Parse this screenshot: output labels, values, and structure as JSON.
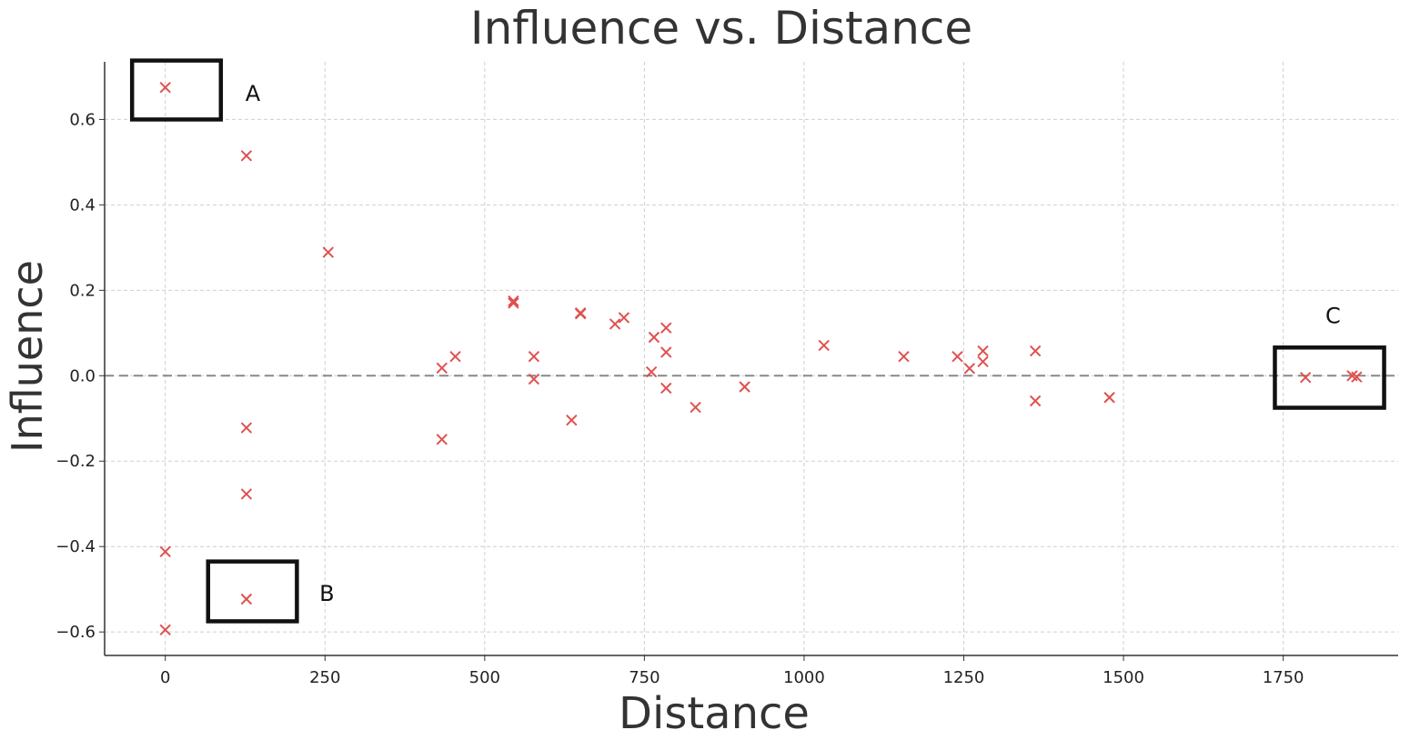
{
  "chart_data": {
    "type": "scatter",
    "title": "Influence vs. Distance",
    "xlabel": "Distance",
    "ylabel": "Influence",
    "xlim": [
      -95,
      1930
    ],
    "ylim": [
      -0.655,
      0.735
    ],
    "x_ticks": [
      0,
      250,
      500,
      750,
      1000,
      1250,
      1500,
      1750
    ],
    "x_tick_labels": [
      "0",
      "250",
      "500",
      "750",
      "1000",
      "1250",
      "1500",
      "1750"
    ],
    "y_ticks": [
      -0.6,
      -0.4,
      -0.2,
      0.0,
      0.2,
      0.4,
      0.6
    ],
    "y_tick_labels": [
      "−0.6",
      "−0.4",
      "−0.2",
      "0.0",
      "0.2",
      "0.4",
      "0.6"
    ],
    "grid": true,
    "marker": "x",
    "marker_color": "#e05050",
    "reference_line": {
      "y": 0,
      "style": "dashed",
      "color": "#888888"
    },
    "points": [
      {
        "x": 0,
        "y": 0.675
      },
      {
        "x": 0,
        "y": -0.412
      },
      {
        "x": 0,
        "y": -0.595
      },
      {
        "x": 127,
        "y": 0.515
      },
      {
        "x": 127,
        "y": -0.122
      },
      {
        "x": 127,
        "y": -0.277
      },
      {
        "x": 127,
        "y": -0.523
      },
      {
        "x": 255,
        "y": 0.289
      },
      {
        "x": 433,
        "y": 0.018
      },
      {
        "x": 433,
        "y": -0.149
      },
      {
        "x": 454,
        "y": 0.045
      },
      {
        "x": 545,
        "y": 0.175
      },
      {
        "x": 545,
        "y": 0.17
      },
      {
        "x": 577,
        "y": 0.045
      },
      {
        "x": 577,
        "y": -0.008
      },
      {
        "x": 636,
        "y": -0.104
      },
      {
        "x": 650,
        "y": 0.147
      },
      {
        "x": 650,
        "y": 0.145
      },
      {
        "x": 704,
        "y": 0.121
      },
      {
        "x": 718,
        "y": 0.136
      },
      {
        "x": 761,
        "y": 0.009
      },
      {
        "x": 765,
        "y": 0.09
      },
      {
        "x": 784,
        "y": 0.112
      },
      {
        "x": 784,
        "y": 0.055
      },
      {
        "x": 784,
        "y": -0.029
      },
      {
        "x": 830,
        "y": -0.074
      },
      {
        "x": 907,
        "y": -0.026
      },
      {
        "x": 1031,
        "y": 0.071
      },
      {
        "x": 1156,
        "y": 0.045
      },
      {
        "x": 1240,
        "y": 0.045
      },
      {
        "x": 1259,
        "y": 0.017
      },
      {
        "x": 1280,
        "y": 0.058
      },
      {
        "x": 1280,
        "y": 0.033
      },
      {
        "x": 1362,
        "y": 0.058
      },
      {
        "x": 1362,
        "y": -0.059
      },
      {
        "x": 1478,
        "y": -0.051
      },
      {
        "x": 1785,
        "y": -0.004
      },
      {
        "x": 1858,
        "y": 0.0
      },
      {
        "x": 1865,
        "y": -0.003
      }
    ],
    "annotations": [
      {
        "label": "A",
        "box": {
          "x0": -52,
          "x1": 87,
          "y0": 0.6,
          "y1": 0.738
        },
        "label_pos": {
          "x": 137,
          "y": 0.663
        }
      },
      {
        "label": "B",
        "box": {
          "x0": 67,
          "x1": 206,
          "y0": -0.575,
          "y1": -0.435
        },
        "label_pos": {
          "x": 253,
          "y": -0.508
        }
      },
      {
        "label": "C",
        "box": {
          "x0": 1737,
          "x1": 1908,
          "y0": -0.075,
          "y1": 0.066
        },
        "label_pos": {
          "x": 1828,
          "y": 0.142
        }
      }
    ]
  }
}
